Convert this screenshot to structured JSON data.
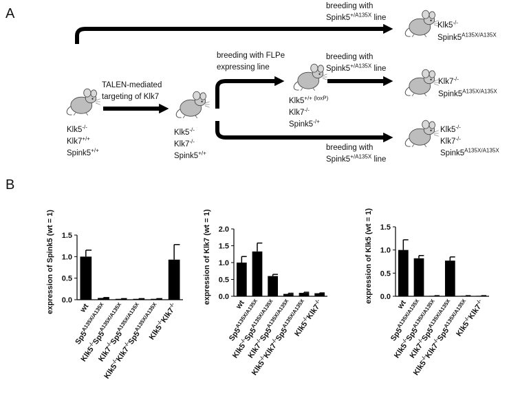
{
  "panel_labels": [
    "A",
    "B"
  ],
  "diagram": {
    "texts": [
      [
        "breeding with"
      ],
      [
        "Spink5",
        "+/A135X",
        " line"
      ],
      [
        "Klk5",
        "-/-"
      ],
      [
        "Spink5",
        "A135X/A135X"
      ],
      [
        "Klk5",
        "-/-"
      ],
      [
        "Klk7",
        "+/+"
      ],
      [
        "Spink5",
        "+/+"
      ],
      [
        "TALEN-mediated"
      ],
      [
        "targeting of Klk7"
      ],
      [
        "Klk5",
        "-/-"
      ],
      [
        "Klk7",
        "-/-"
      ],
      [
        "Spink5",
        "+/+"
      ],
      [
        "breeding with FLPe"
      ],
      [
        "expressing line"
      ],
      [
        "Klk5",
        "+/+ (loxP)"
      ],
      [
        "Klk7",
        "-/-"
      ],
      [
        "Spink5",
        "-/+"
      ],
      [
        "breeding with"
      ],
      [
        "Spink5",
        "+/A135X",
        " line"
      ],
      [
        "Klk7",
        "-/-"
      ],
      [
        "Spink5",
        "A135X/A135X"
      ],
      [
        "breeding with"
      ],
      [
        "Spink5",
        "+/A135X",
        " line"
      ],
      [
        "Klk5",
        "-/-"
      ],
      [
        "Klk7",
        "-/-"
      ],
      [
        "Spink5",
        "A135X/A135X"
      ]
    ]
  },
  "chart_data": [
    {
      "type": "bar",
      "ylabel": "expression of Spink5 (wt = 1)",
      "color": "#000000",
      "categories": [
        [
          "wt"
        ],
        [
          "Sp5",
          "A135X/A135X"
        ],
        [
          "Klk5",
          "-/-",
          "Sp5",
          "A135X/A135X"
        ],
        [
          "Klk7",
          "-/-",
          "Sp5",
          "A135X/A135X"
        ],
        [
          "Klk5",
          "-/-",
          "Klk7",
          "-/-",
          "Sp5",
          "A135X/A135X"
        ],
        [
          "Klk5",
          "-/-",
          "Klk7",
          "-/-"
        ]
      ],
      "values": [
        1.0,
        0.04,
        0.02,
        0.02,
        0.02,
        0.93
      ],
      "errors": [
        0.15,
        0.01,
        0.005,
        0.005,
        0.005,
        0.35
      ],
      "ylim": [
        0,
        1.5
      ],
      "yticks": [
        {
          "value": 0,
          "label": "0.0"
        },
        {
          "value": 0.5,
          "label": "0.5"
        },
        {
          "value": 1,
          "label": "1.0"
        },
        {
          "value": 1.5,
          "label": "1.5"
        }
      ]
    },
    {
      "type": "bar",
      "ylabel": "expression of Klk7 (wt = 1)",
      "color": "#000000",
      "categories": [
        [
          "wt"
        ],
        [
          "Sp5",
          "A135X/A135X"
        ],
        [
          "Klk5",
          "-/-",
          "Sp5",
          "A135X/A135X"
        ],
        [
          "Klk7",
          "-/-",
          "Sp5",
          "A135X/A135X"
        ],
        [
          "Klk5",
          "-/-",
          "Klk7",
          "-/-",
          "Sp5",
          "A135X/A135X"
        ],
        [
          "Klk5",
          "-/-",
          "Klk7",
          "-/-"
        ]
      ],
      "values": [
        1.0,
        1.33,
        0.6,
        0.07,
        0.1,
        0.09
      ],
      "errors": [
        0.18,
        0.25,
        0.05,
        0.02,
        0.02,
        0.01
      ],
      "ylim": [
        0,
        2
      ],
      "yticks": [
        {
          "value": 0,
          "label": "0.0"
        },
        {
          "value": 0.5,
          "label": "0.5"
        },
        {
          "value": 1,
          "label": "1.0"
        },
        {
          "value": 1.5,
          "label": "1.5"
        },
        {
          "value": 2,
          "label": "2.0"
        }
      ]
    },
    {
      "type": "bar",
      "ylabel": "expression of Klk5 (wt = 1)",
      "color": "#000000",
      "categories": [
        [
          "wt"
        ],
        [
          "Sp5",
          "A135X/A135X"
        ],
        [
          "Klk5",
          "-/-",
          "Sp5",
          "A135X/A135X"
        ],
        [
          "Klk7",
          "-/-",
          "Sp5",
          "A135X/A135X"
        ],
        [
          "Klk5",
          "-/-",
          "Klk7",
          "-/-",
          "Sp5",
          "A135X/A135X"
        ],
        [
          "Klk5",
          "-/-",
          "Klk7",
          "-/-"
        ]
      ],
      "values": [
        1.0,
        0.82,
        0.01,
        0.77,
        0.01,
        0.01
      ],
      "errors": [
        0.22,
        0.06,
        0.003,
        0.08,
        0.003,
        0.003
      ],
      "ylim": [
        0,
        1.5
      ],
      "yticks": [
        {
          "value": 0,
          "label": "0.0"
        },
        {
          "value": 0.5,
          "label": "0.5"
        },
        {
          "value": 1,
          "label": "1.0"
        },
        {
          "value": 1.5,
          "label": "1.5"
        }
      ]
    }
  ]
}
